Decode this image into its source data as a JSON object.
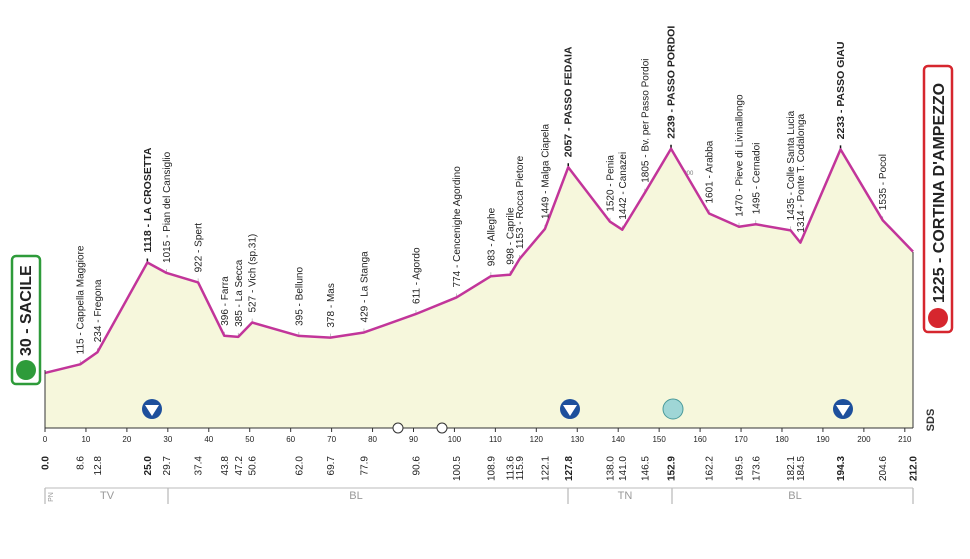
{
  "chart_data": {
    "type": "area",
    "x": [
      0.0,
      8.6,
      12.8,
      25.0,
      29.7,
      37.4,
      43.8,
      47.2,
      50.6,
      62.0,
      69.7,
      77.9,
      90.6,
      100.5,
      108.9,
      113.6,
      115.9,
      122.1,
      127.8,
      138.0,
      141.0,
      146.5,
      152.9,
      162.2,
      169.5,
      173.6,
      182.1,
      184.5,
      194.3,
      204.6,
      212.0
    ],
    "x_labels": [
      "0.0",
      "8.6",
      "12.8",
      "25.0",
      "29.7",
      "37.4",
      "43.8",
      "47.2",
      "50.6",
      "62.0",
      "69.7",
      "77.9",
      "90.6",
      "100.5",
      "108.9",
      "113.6",
      "115.9",
      "122.1",
      "127.8",
      "138.0",
      "141.0",
      "146.5",
      "152.9",
      "162.2",
      "169.5",
      "173.6",
      "182.1",
      "184.5",
      "194.3",
      "204.6",
      "212.0"
    ],
    "values": [
      30,
      115,
      234,
      1118,
      1015,
      922,
      396,
      385,
      527,
      395,
      378,
      429,
      611,
      774,
      983,
      998,
      1153,
      1449,
      2057,
      1520,
      1442,
      1805,
      2239,
      1601,
      1470,
      1495,
      1435,
      1314,
      2233,
      1535,
      1225
    ],
    "value_labels": [
      "30 - SACILE",
      "115 - Cappella Maggiore",
      "234 - Fregona",
      "1118 - LA CROSETTA",
      "1015 - Pian del Cansiglio",
      "922 - Spert",
      "396 - Farra",
      "385 - La Secca",
      "527 - Vich (sp.31)",
      "395 - Belluno",
      "378 - Mas",
      "429 - La Stanga",
      "611 - Agordo",
      "774 - Cencenighe Agordino",
      "983 - Alleghe",
      "998 - Caprile",
      "1153 - Rocca Pietore",
      "1449 - Malga Ciapela",
      "2057 - PASSO FEDAIA",
      "1520 - Penia",
      "1442 - Canazei",
      "1805 - Bv. per Passo Pordoi",
      "2239 - PASSO PORDOI",
      "1601 - Arabba",
      "1470 - Pieve di Livinallongo",
      "1495 - Cernadoi",
      "1435 - Colle Santa Lucia",
      "1314 - Ponte T. Codalonga",
      "2233 - PASSO GIAU",
      "1535 - Pocol",
      "1225 - CORTINA D'AMPEZZO"
    ],
    "color": "#c2359a",
    "xlim": [
      0,
      212
    ],
    "xticks": [
      0,
      10,
      20,
      30,
      40,
      50,
      60,
      70,
      80,
      90,
      100,
      110,
      120,
      130,
      140,
      150,
      160,
      170,
      180,
      190,
      200,
      210
    ],
    "ylim": [
      0,
      2000
    ],
    "yticks": [
      0,
      200,
      400,
      600,
      800,
      1000,
      1200,
      1400,
      1600,
      1800,
      2000
    ],
    "regions": [
      "PN",
      "TV",
      "BL",
      "TN",
      "BL"
    ],
    "logo": "SDS"
  }
}
